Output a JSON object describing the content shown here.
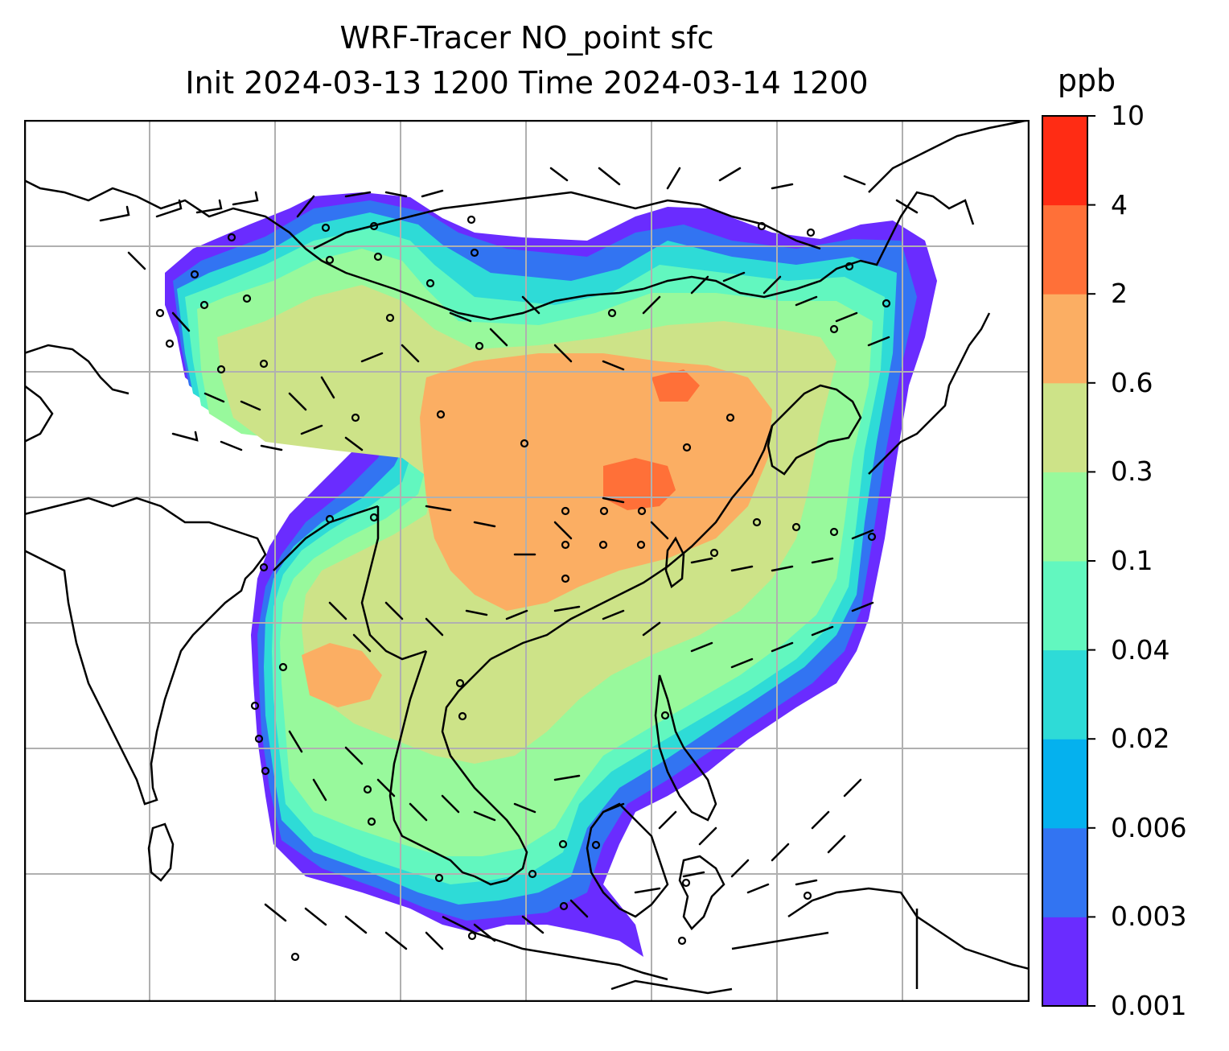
{
  "title": {
    "line1": "WRF-Tracer NO_point sfc",
    "line2": "Init 2024-03-13 1200 Time 2024-03-14 1200"
  },
  "colorbar": {
    "unit": "ppb",
    "levels": [
      "0.001",
      "0.003",
      "0.006",
      "0.02",
      "0.04",
      "0.1",
      "0.3",
      "0.6",
      "2",
      "4",
      "10"
    ],
    "colors": [
      "#6a2cff",
      "#3274f2",
      "#05b1ee",
      "#2edbd7",
      "#62f7bf",
      "#98f99c",
      "#cde388",
      "#fbae63",
      "#ff7038",
      "#ff2c14"
    ]
  },
  "map": {
    "gridlines": true,
    "land_outline_color": "#000000",
    "grid_color": "#b0b0b0"
  }
}
